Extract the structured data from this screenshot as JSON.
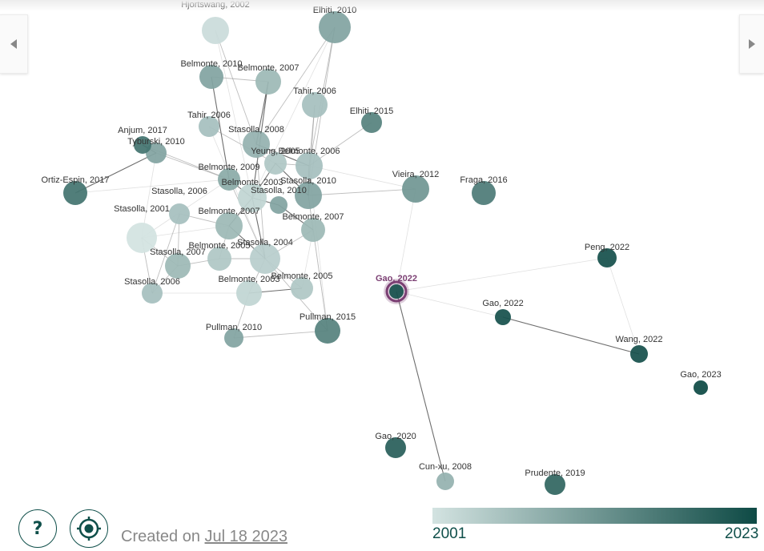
{
  "graph": {
    "nodes": [
      {
        "id": "hjortswang2002",
        "label": "Hjortswang, 2002",
        "year": 2002,
        "size": 17
      },
      {
        "id": "elhiti2010",
        "label": "Elhiti, 2010",
        "year": 2010,
        "size": 20
      },
      {
        "id": "belmonte2010",
        "label": "Belmonte, 2010",
        "year": 2010,
        "size": 15
      },
      {
        "id": "belmonte2007a",
        "label": "Belmonte, 2007",
        "year": 2007,
        "size": 16
      },
      {
        "id": "tahir2006a",
        "label": "Tahir, 2006",
        "year": 2006,
        "size": 16
      },
      {
        "id": "elhiti2015",
        "label": "Elhiti, 2015",
        "year": 2015,
        "size": 13
      },
      {
        "id": "tahir2006b",
        "label": "Tahir, 2006",
        "year": 2006,
        "size": 13
      },
      {
        "id": "stasolla2008",
        "label": "Stasolla, 2008",
        "year": 2008,
        "size": 17
      },
      {
        "id": "anjum2017",
        "label": "Anjum, 2017",
        "year": 2017,
        "size": 11
      },
      {
        "id": "tyburski2010",
        "label": "Tyburski, 2010",
        "year": 2010,
        "size": 13
      },
      {
        "id": "yeung2005",
        "label": "Yeung, 2005",
        "year": 2005,
        "size": 14
      },
      {
        "id": "belmonte2006",
        "label": "Belmonte, 2006",
        "year": 2006,
        "size": 17
      },
      {
        "id": "belmonte2009",
        "label": "Belmonte, 2009",
        "year": 2009,
        "size": 14
      },
      {
        "id": "ortizespin2017",
        "label": "Ortiz-Espin, 2017",
        "year": 2017,
        "size": 15
      },
      {
        "id": "belmonte2003a",
        "label": "Belmonte, 2003",
        "year": 2003,
        "size": 18
      },
      {
        "id": "stasolla2010a",
        "label": "Stasolla, 2010",
        "year": 2010,
        "size": 17
      },
      {
        "id": "stasolla2010b",
        "label": "Stasolla, 2010",
        "year": 2010,
        "size": 11
      },
      {
        "id": "vieira2012",
        "label": "Vieira, 2012",
        "year": 2012,
        "size": 17
      },
      {
        "id": "fraga2016",
        "label": "Fraga, 2016",
        "year": 2016,
        "size": 15
      },
      {
        "id": "stasolla2006a",
        "label": "Stasolla, 2006",
        "year": 2006,
        "size": 13
      },
      {
        "id": "belmonte2007b",
        "label": "Belmonte, 2007",
        "year": 2007,
        "size": 17
      },
      {
        "id": "belmonte2007c",
        "label": "Belmonte, 2007",
        "year": 2007,
        "size": 15
      },
      {
        "id": "stasolla2001",
        "label": "Stasolla, 2001",
        "year": 2001,
        "size": 19
      },
      {
        "id": "belmonte2005a",
        "label": "Belmonte, 2005",
        "year": 2005,
        "size": 15
      },
      {
        "id": "stasolla2004",
        "label": "Stasolla, 2004",
        "year": 2004,
        "size": 19
      },
      {
        "id": "stasolla2007",
        "label": "Stasolla, 2007",
        "year": 2007,
        "size": 16
      },
      {
        "id": "peng2022",
        "label": "Peng, 2022",
        "year": 2022,
        "size": 12
      },
      {
        "id": "stasolla2006b",
        "label": "Stasolla, 2006",
        "year": 2006,
        "size": 13
      },
      {
        "id": "belmonte2003b",
        "label": "Belmonte, 2003",
        "year": 2003,
        "size": 16
      },
      {
        "id": "belmonte2005b",
        "label": "Belmonte, 2005",
        "year": 2005,
        "size": 14
      },
      {
        "id": "gao2022a",
        "label": "Gao, 2022",
        "year": 2022,
        "size": 9,
        "selected": true
      },
      {
        "id": "gao2022b",
        "label": "Gao, 2022",
        "year": 2022,
        "size": 10
      },
      {
        "id": "pullman2010",
        "label": "Pullman, 2010",
        "year": 2010,
        "size": 12
      },
      {
        "id": "pullman2015",
        "label": "Pullman, 2015",
        "year": 2015,
        "size": 16
      },
      {
        "id": "wang2022",
        "label": "Wang, 2022",
        "year": 2022,
        "size": 11
      },
      {
        "id": "gao2023",
        "label": "Gao, 2023",
        "year": 2023,
        "size": 9
      },
      {
        "id": "gao2020",
        "label": "Gao, 2020",
        "year": 2020,
        "size": 13
      },
      {
        "id": "cunxu2008",
        "label": "Cun-xu, 2008",
        "year": 2008,
        "size": 11
      },
      {
        "id": "prudente2019",
        "label": "Prudente, 2019",
        "year": 2019,
        "size": 13
      }
    ],
    "edges": [
      {
        "source": "gao2022a",
        "target": "cunxu2008",
        "weight": "strong"
      },
      {
        "source": "gao2022b",
        "target": "wang2022",
        "weight": "strong"
      },
      {
        "source": "gao2022a",
        "target": "gao2022b",
        "weight": "weak"
      },
      {
        "source": "gao2022a",
        "target": "vieira2012",
        "weight": "weak"
      },
      {
        "source": "peng2022",
        "target": "wang2022",
        "weight": "weak"
      },
      {
        "source": "peng2022",
        "target": "gao2022a",
        "weight": "weak"
      },
      {
        "source": "stasolla2010a",
        "target": "vieira2012",
        "weight": "medium"
      },
      {
        "source": "belmonte2006",
        "target": "elhiti2015",
        "weight": "medium"
      },
      {
        "source": "elhiti2010",
        "target": "stasolla2008",
        "weight": "medium"
      },
      {
        "source": "elhiti2010",
        "target": "stasolla2010a",
        "weight": "medium"
      },
      {
        "source": "elhiti2010",
        "target": "belmonte2006",
        "weight": "medium"
      },
      {
        "source": "hjortswang2002",
        "target": "stasolla2008",
        "weight": "medium"
      },
      {
        "source": "belmonte2010",
        "target": "belmonte2009",
        "weight": "strong"
      },
      {
        "source": "belmonte2010",
        "target": "belmonte2007a",
        "weight": "medium"
      },
      {
        "source": "belmonte2007a",
        "target": "stasolla2008",
        "weight": "strong"
      },
      {
        "source": "belmonte2007a",
        "target": "belmonte2003a",
        "weight": "strong"
      },
      {
        "source": "tahir2006a",
        "target": "stasolla2010a",
        "weight": "medium"
      },
      {
        "source": "tahir2006a",
        "target": "belmonte2006",
        "weight": "medium"
      },
      {
        "source": "tahir2006b",
        "target": "yeung2005",
        "weight": "medium"
      },
      {
        "source": "stasolla2008",
        "target": "belmonte2006",
        "weight": "strong"
      },
      {
        "source": "anjum2017",
        "target": "tyburski2010",
        "weight": "strong"
      },
      {
        "source": "tyburski2010",
        "target": "ortizespin2017",
        "weight": "strong"
      },
      {
        "source": "tyburski2010",
        "target": "belmonte2009",
        "weight": "medium"
      },
      {
        "source": "anjum2017",
        "target": "belmonte2009",
        "weight": "medium"
      },
      {
        "source": "ortizespin2017",
        "target": "belmonte2009",
        "weight": "weak"
      },
      {
        "source": "yeung2005",
        "target": "stasolla2010a",
        "weight": "strong"
      },
      {
        "source": "yeung2005",
        "target": "belmonte2003a",
        "weight": "strong"
      },
      {
        "source": "belmonte2006",
        "target": "stasolla2010a",
        "weight": "strong"
      },
      {
        "source": "belmonte2009",
        "target": "belmonte2003a",
        "weight": "strong"
      },
      {
        "source": "belmonte2003a",
        "target": "stasolla2010b",
        "weight": "strong"
      },
      {
        "source": "stasolla2010b",
        "target": "belmonte2007c",
        "weight": "strong"
      },
      {
        "source": "stasolla2010a",
        "target": "belmonte2007c",
        "weight": "medium"
      },
      {
        "source": "stasolla2006a",
        "target": "belmonte2007b",
        "weight": "medium"
      },
      {
        "source": "stasolla2006a",
        "target": "stasolla2007",
        "weight": "medium"
      },
      {
        "source": "stasolla2006a",
        "target": "stasolla2006b",
        "weight": "medium"
      },
      {
        "source": "stasolla2001",
        "target": "stasolla2007",
        "weight": "medium"
      },
      {
        "source": "stasolla2001",
        "target": "stasolla2006b",
        "weight": "medium"
      },
      {
        "source": "stasolla2001",
        "target": "belmonte2007b",
        "weight": "weak"
      },
      {
        "source": "belmonte2007b",
        "target": "stasolla2004",
        "weight": "strong"
      },
      {
        "source": "belmonte2007b",
        "target": "belmonte2005a",
        "weight": "medium"
      },
      {
        "source": "belmonte2007b",
        "target": "belmonte2003a",
        "weight": "strong"
      },
      {
        "source": "belmonte2005a",
        "target": "stasolla2004",
        "weight": "medium"
      },
      {
        "source": "stasolla2004",
        "target": "belmonte2003b",
        "weight": "medium"
      },
      {
        "source": "stasolla2004",
        "target": "belmonte2007c",
        "weight": "medium"
      },
      {
        "source": "belmonte2003b",
        "target": "belmonte2005b",
        "weight": "strong"
      },
      {
        "source": "belmonte2003b",
        "target": "pullman2010",
        "weight": "medium"
      },
      {
        "source": "pullman2010",
        "target": "pullman2015",
        "weight": "medium"
      },
      {
        "source": "pullman2015",
        "target": "belmonte2007c",
        "weight": "medium"
      },
      {
        "source": "pullman2015",
        "target": "stasolla2004",
        "weight": "medium"
      },
      {
        "source": "stasolla2007",
        "target": "belmonte2005a",
        "weight": "medium"
      },
      {
        "source": "stasolla2006b",
        "target": "belmonte2003b",
        "weight": "weak"
      },
      {
        "source": "belmonte2005b",
        "target": "stasolla2004",
        "weight": "medium"
      },
      {
        "source": "belmonte2006",
        "target": "vieira2012",
        "weight": "weak"
      },
      {
        "source": "stasolla2008",
        "target": "stasolla2004",
        "weight": "medium"
      },
      {
        "source": "belmonte2009",
        "target": "stasolla2004",
        "weight": "medium"
      },
      {
        "source": "stasolla2001",
        "target": "belmonte2009",
        "weight": "weak"
      },
      {
        "source": "tyburski2010",
        "target": "stasolla2001",
        "weight": "weak"
      },
      {
        "source": "hjortswang2002",
        "target": "belmonte2003a",
        "weight": "weak"
      },
      {
        "source": "elhiti2010",
        "target": "belmonte2003a",
        "weight": "weak"
      },
      {
        "source": "belmonte2006",
        "target": "pullman2015",
        "weight": "weak"
      },
      {
        "source": "stasolla2010a",
        "target": "pullman2015",
        "weight": "weak"
      },
      {
        "source": "belmonte2007c",
        "target": "belmonte2005b",
        "weight": "weak"
      },
      {
        "source": "tahir2006b",
        "target": "stasolla2004",
        "weight": "weak"
      },
      {
        "source": "stasolla2006b",
        "target": "stasolla2007",
        "weight": "medium"
      },
      {
        "source": "belmonte2003a",
        "target": "stasolla2004",
        "weight": "strong"
      },
      {
        "source": "yeung2005",
        "target": "belmonte2006",
        "weight": "medium"
      }
    ]
  },
  "colorscale": {
    "min_label": "2001",
    "max_label": "2023",
    "min_year": 2001,
    "max_year": 2023,
    "start_color": "#d3e3e1",
    "end_color": "#0e4a45"
  },
  "footer": {
    "created_prefix": "Created on",
    "created_date": "Jul 18 2023"
  },
  "buttons": {
    "help_label": "?"
  },
  "colors": {
    "accent": "#0f4f4a",
    "selected_ring": "#7b3f73"
  }
}
